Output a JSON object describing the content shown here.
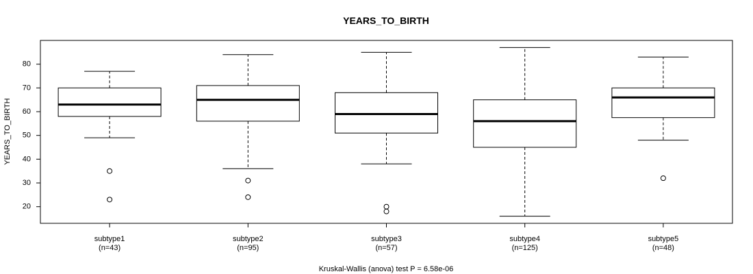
{
  "chart_data": {
    "type": "box",
    "title": "YEARS_TO_BIRTH",
    "ylabel": "YEARS_TO_BIRTH",
    "xlabel": "Kruskal-Wallis (anova) test P = 6.58e-06",
    "ylim": [
      13,
      90
    ],
    "yticks": [
      20,
      30,
      40,
      50,
      60,
      70,
      80
    ],
    "grid": false,
    "groups": [
      {
        "label": "subtype1",
        "count_label": "(n=43)",
        "whisker_low": 49,
        "q1": 58,
        "median": 63,
        "q3": 70,
        "whisker_high": 77,
        "outliers": [
          35,
          23
        ]
      },
      {
        "label": "subtype2",
        "count_label": "(n=95)",
        "whisker_low": 36,
        "q1": 56,
        "median": 65,
        "q3": 71,
        "whisker_high": 84,
        "outliers": [
          31,
          24
        ]
      },
      {
        "label": "subtype3",
        "count_label": "(n=57)",
        "whisker_low": 38,
        "q1": 51,
        "median": 59,
        "q3": 68,
        "whisker_high": 85,
        "outliers": [
          20,
          18
        ]
      },
      {
        "label": "subtype4",
        "count_label": "(n=125)",
        "whisker_low": 16,
        "q1": 45,
        "median": 56,
        "q3": 65,
        "whisker_high": 87,
        "outliers": []
      },
      {
        "label": "subtype5",
        "count_label": "(n=48)",
        "whisker_low": 48,
        "q1": 57.5,
        "median": 66,
        "q3": 70,
        "whisker_high": 83,
        "outliers": [
          32
        ]
      }
    ]
  }
}
